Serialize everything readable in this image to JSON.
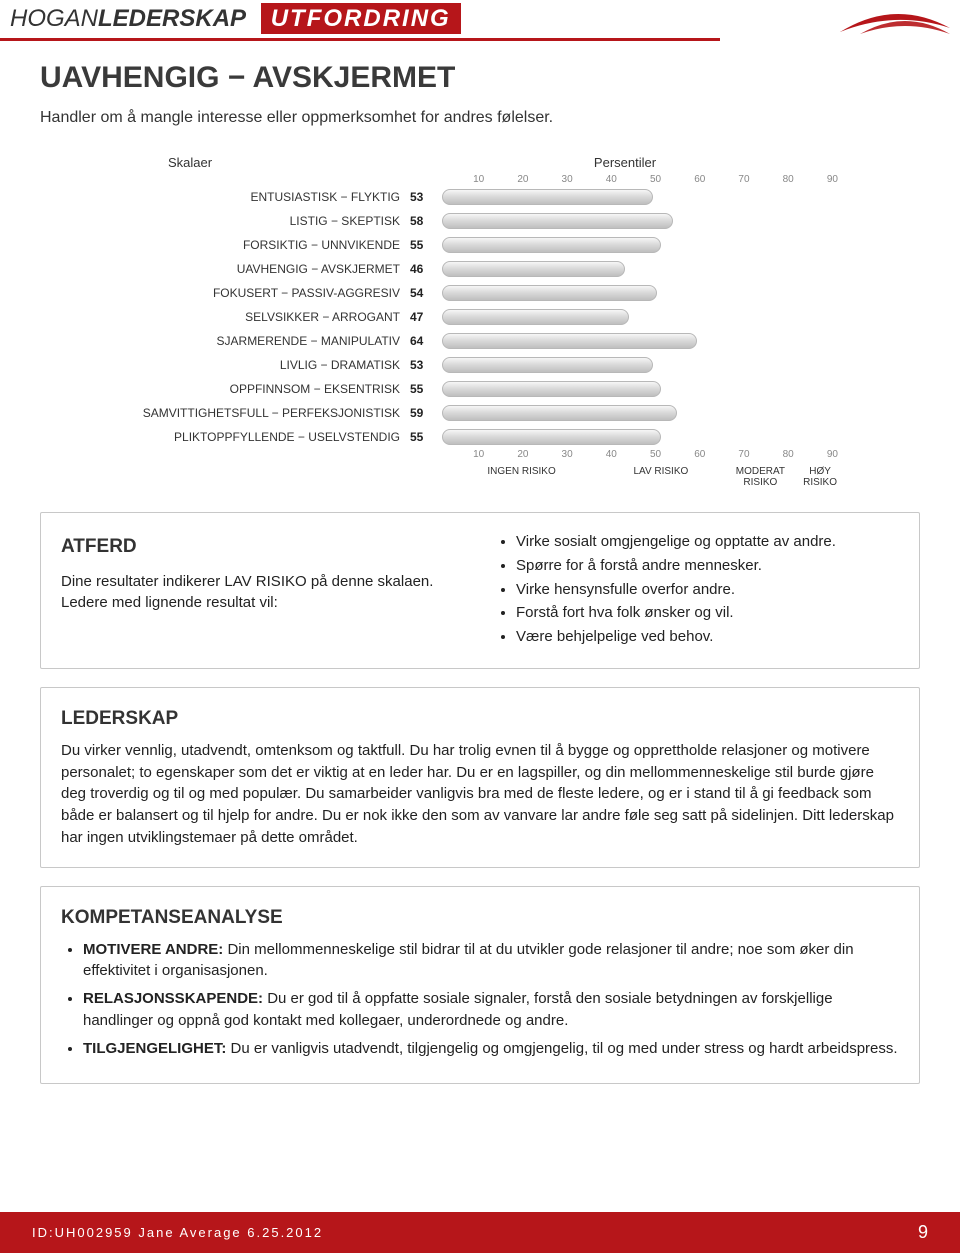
{
  "header": {
    "brand_light": "HOGAN",
    "brand_bold": "LEDERSKAP",
    "badge": "UTFORDRING"
  },
  "title": "UAVHENGIG − AVSKJERMET",
  "subtitle": "Handler om å mangle interesse eller oppmerksomhet for andres følelser.",
  "chart": {
    "skalaer_label": "Skalaer",
    "persentiler_label": "Persentiler",
    "ticks": [
      10,
      20,
      30,
      40,
      50,
      60,
      70,
      80,
      90
    ],
    "rows": [
      {
        "label": "ENTUSIASTISK − FLYKTIG",
        "value": 53
      },
      {
        "label": "LISTIG − SKEPTISK",
        "value": 58
      },
      {
        "label": "FORSIKTIG − UNNVIKENDE",
        "value": 55
      },
      {
        "label": "UAVHENGIG − AVSKJERMET",
        "value": 46
      },
      {
        "label": "FOKUSERT − PASSIV-AGGRESIV",
        "value": 54
      },
      {
        "label": "SELVSIKKER − ARROGANT",
        "value": 47
      },
      {
        "label": "SJARMERENDE − MANIPULATIV",
        "value": 64
      },
      {
        "label": "LIVLIG − DRAMATISK",
        "value": 53
      },
      {
        "label": "OPPFINNSOM − EKSENTRISK",
        "value": 55
      },
      {
        "label": "SAMVITTIGHETSFULL − PERFEKSJONISTISK",
        "value": 59
      },
      {
        "label": "PLIKTOPPFYLLENDE − USELVSTENDIG",
        "value": 55
      }
    ],
    "risk_zones": [
      {
        "label": "INGEN RISIKO",
        "width_pct": 40
      },
      {
        "label": "LAV RISIKO",
        "width_pct": 30
      },
      {
        "label": "MODERAT RISIKO",
        "width_pct": 20
      },
      {
        "label": "HØY RISIKO",
        "width_pct": 10
      }
    ],
    "bar_color": "#c9c9c9",
    "background": "#ffffff"
  },
  "atferd": {
    "heading": "ATFERD",
    "intro": "Dine resultater indikerer LAV RISIKO på denne skalaen. Ledere med lignende resultat vil:",
    "bullets": [
      "Virke sosialt omgjengelige og opptatte av andre.",
      "Spørre for å forstå andre mennesker.",
      "Virke hensynsfulle overfor andre.",
      "Forstå fort hva folk ønsker og vil.",
      "Være behjelpelige ved behov."
    ]
  },
  "lederskap": {
    "heading": "LEDERSKAP",
    "body": "Du virker vennlig, utadvendt, omtenksom og taktfull. Du har trolig evnen til å bygge og opprettholde relasjoner og motivere personalet; to egenskaper som det er viktig at en leder har. Du er en lagspiller, og din mellommenneskelige stil burde gjøre deg troverdig og til og med populær. Du samarbeider vanligvis bra med de fleste ledere, og er i stand til å gi feedback som både er balansert og til hjelp for andre. Du er nok ikke den som av vanvare lar andre føle seg satt på sidelinjen. Ditt lederskap har ingen utviklingstemaer på dette området."
  },
  "kompetanse": {
    "heading": "KOMPETANSEANALYSE",
    "items": [
      {
        "term": "MOTIVERE ANDRE:",
        "text": " Din mellommenneskelige stil bidrar til at du utvikler gode relasjoner til andre; noe som øker din effektivitet i organisasjonen."
      },
      {
        "term": "RELASJONSSKAPENDE:",
        "text": " Du er god til å oppfatte sosiale signaler, forstå den sosiale betydningen av forskjellige handlinger og oppnå god kontakt med kollegaer, underordnede og andre."
      },
      {
        "term": "TILGJENGELIGHET:",
        "text": " Du er vanligvis utadvendt, tilgjengelig og omgjengelig, til og med under stress og hardt arbeidspress."
      }
    ]
  },
  "footer": {
    "id_line": "ID:UH002959 Jane Average 6.25.2012",
    "page_number": "9"
  },
  "colors": {
    "brand_red": "#b6161a",
    "text": "#222222",
    "border": "#c8c8c8"
  }
}
